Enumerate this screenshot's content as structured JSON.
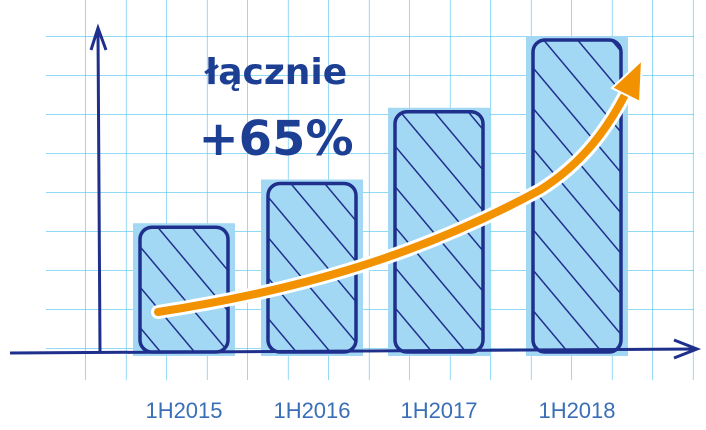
{
  "chart_data": {
    "type": "bar",
    "annotations": [
      "łącznie",
      "+65%"
    ],
    "categories": [
      "1H2015",
      "1H2016",
      "1H2017",
      "1H2018"
    ],
    "values": [
      40,
      54,
      77,
      100
    ],
    "color": "#a3d8f5",
    "outline": "#1e2f8c",
    "ylim": [
      0,
      100
    ]
  }
}
